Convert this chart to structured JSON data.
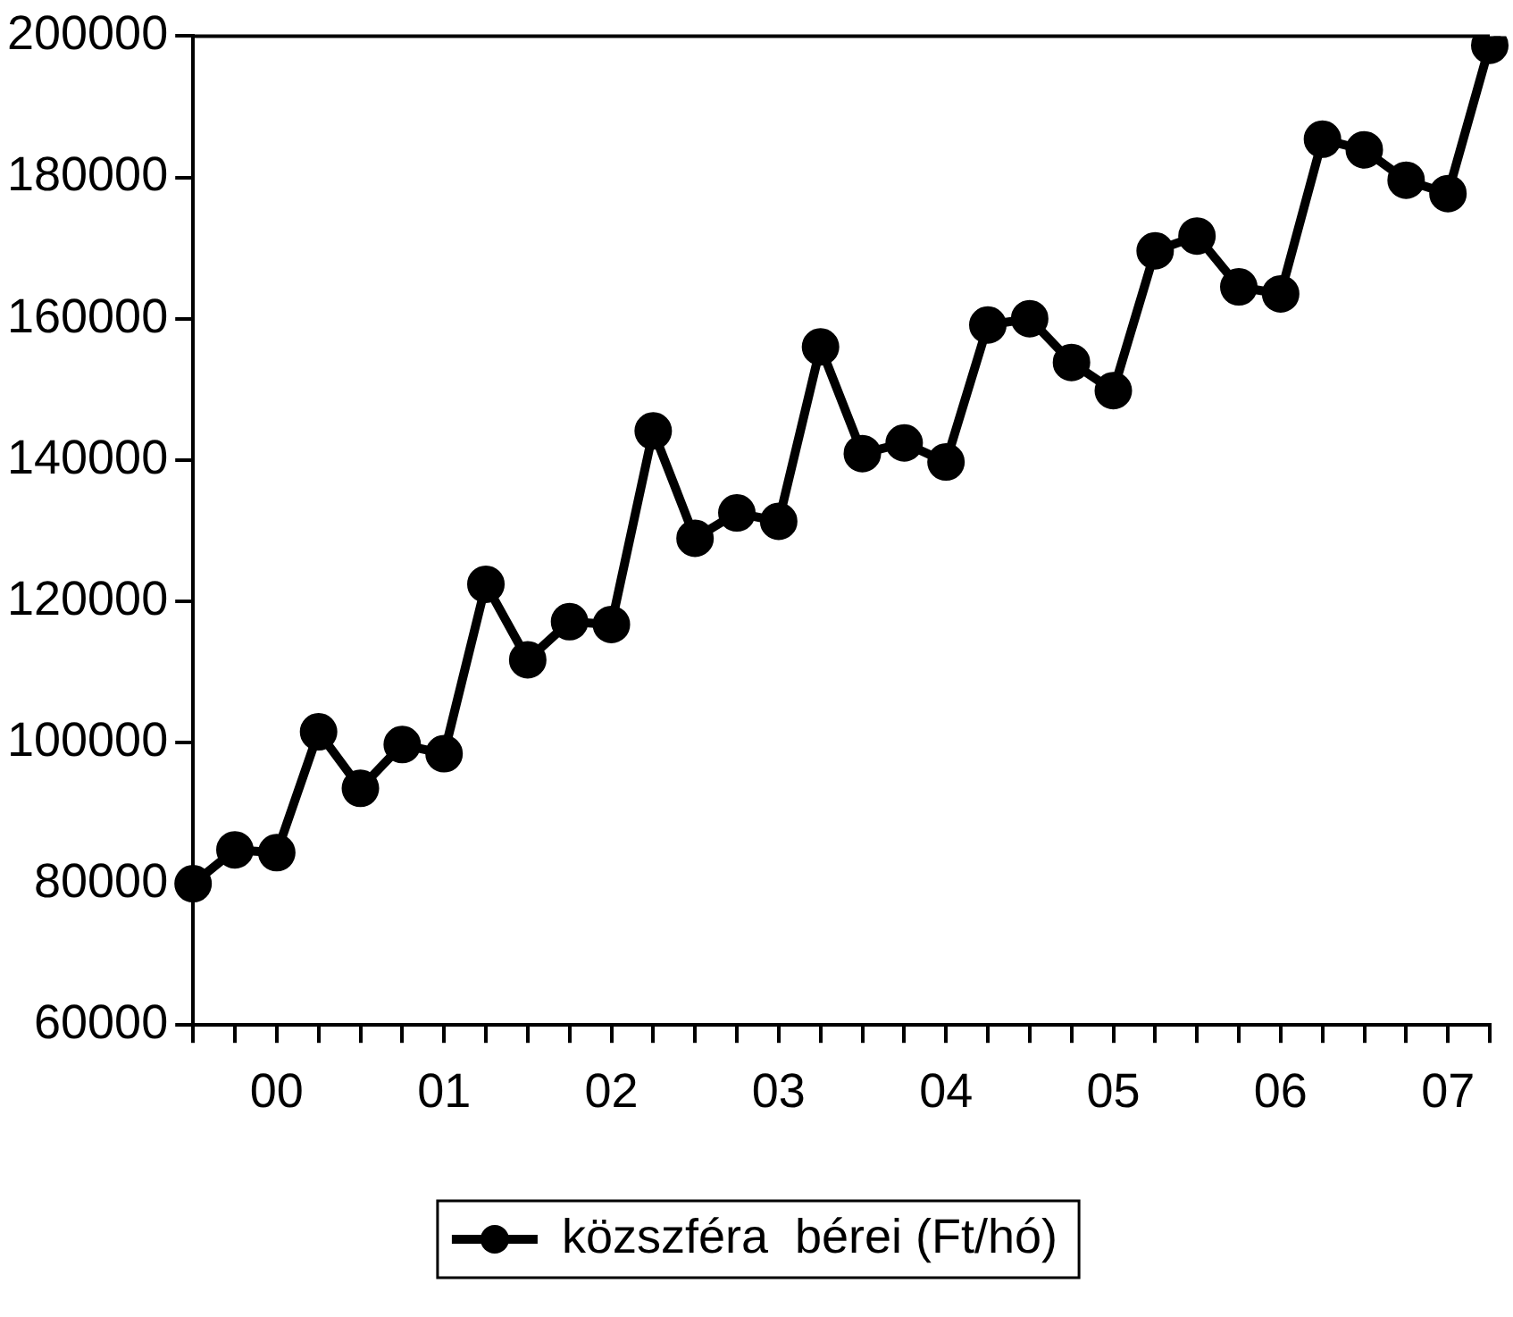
{
  "chart_data": {
    "type": "line",
    "categories": [
      null,
      null,
      "00",
      null,
      null,
      null,
      "01",
      null,
      null,
      null,
      "02",
      null,
      null,
      null,
      "03",
      null,
      null,
      null,
      "04",
      null,
      null,
      null,
      "05",
      null,
      null,
      null,
      "06",
      null,
      null,
      null,
      "07",
      null
    ],
    "series": [
      {
        "name": "közszféra  bérei (Ft/hó)",
        "color": "#000000",
        "values": [
          80000,
          84800,
          84400,
          101500,
          93500,
          99700,
          98400,
          122400,
          111700,
          117100,
          116700,
          144100,
          128900,
          132500,
          131300,
          156000,
          140900,
          142400,
          139700,
          159100,
          160000,
          153800,
          149800,
          169600,
          171700,
          164500,
          163500,
          185400,
          183900,
          179600,
          177700,
          198700
        ]
      }
    ],
    "ylim": [
      60000,
      200000
    ],
    "yticks": [
      60000,
      80000,
      100000,
      120000,
      140000,
      160000,
      180000,
      200000
    ],
    "grid": false,
    "legend": "bottom",
    "marker": "circle",
    "line_style": "solid"
  }
}
